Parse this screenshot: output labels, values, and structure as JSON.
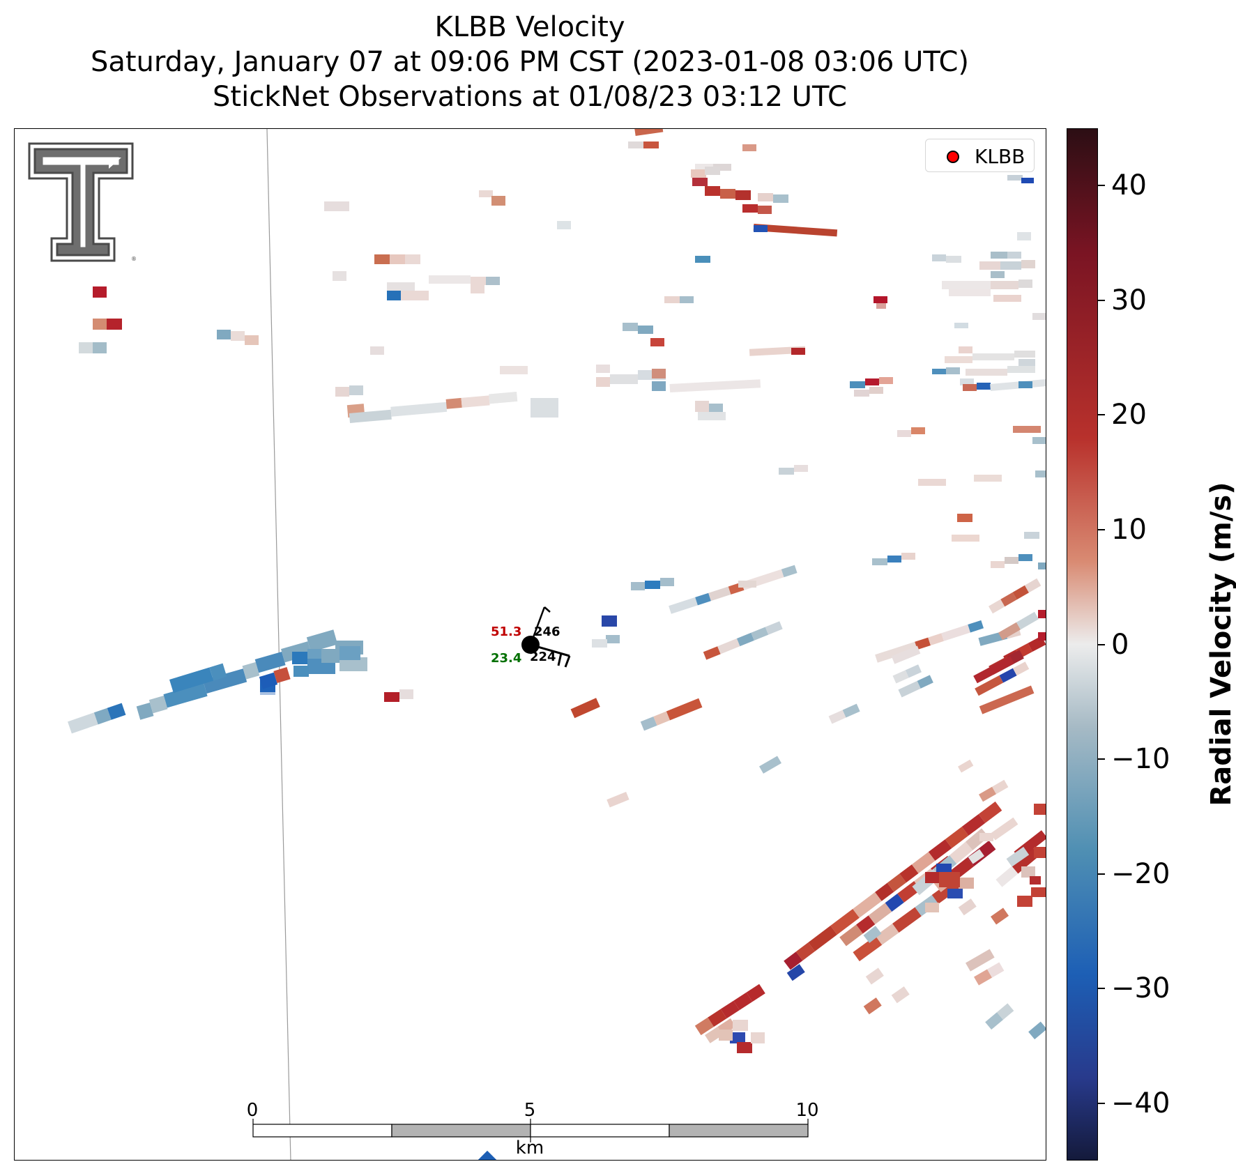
{
  "title": {
    "line1": "KLBB Velocity",
    "line2": "Saturday, January 07 at 09:06 PM CST (2023-01-08 03:06 UTC)",
    "line3": "StickNet Observations at 01/08/23 03:12 UTC"
  },
  "legend": {
    "label": "KLBB",
    "marker_color": "#ff0000"
  },
  "station": {
    "temperature": "51.3",
    "dewpoint": "23.4",
    "code_upper": "246",
    "code_lower": "224",
    "temperature_color": "#c00000",
    "dewpoint_color": "#007000"
  },
  "scalebar": {
    "unit": "km",
    "ticks": [
      "0",
      "5",
      "10"
    ]
  },
  "colorbar": {
    "label": "Radial Velocity (m/s)",
    "range": [
      -45,
      45
    ],
    "ticks": [
      {
        "value": 40,
        "text": "40"
      },
      {
        "value": 30,
        "text": "30"
      },
      {
        "value": 20,
        "text": "20"
      },
      {
        "value": 10,
        "text": "10"
      },
      {
        "value": 0,
        "text": "0"
      },
      {
        "value": -10,
        "text": "−10"
      },
      {
        "value": -20,
        "text": "−20"
      },
      {
        "value": -30,
        "text": "−30"
      },
      {
        "value": -40,
        "text": "−40"
      }
    ]
  },
  "logo": {
    "name": "texas-tech-double-t-logo"
  }
}
